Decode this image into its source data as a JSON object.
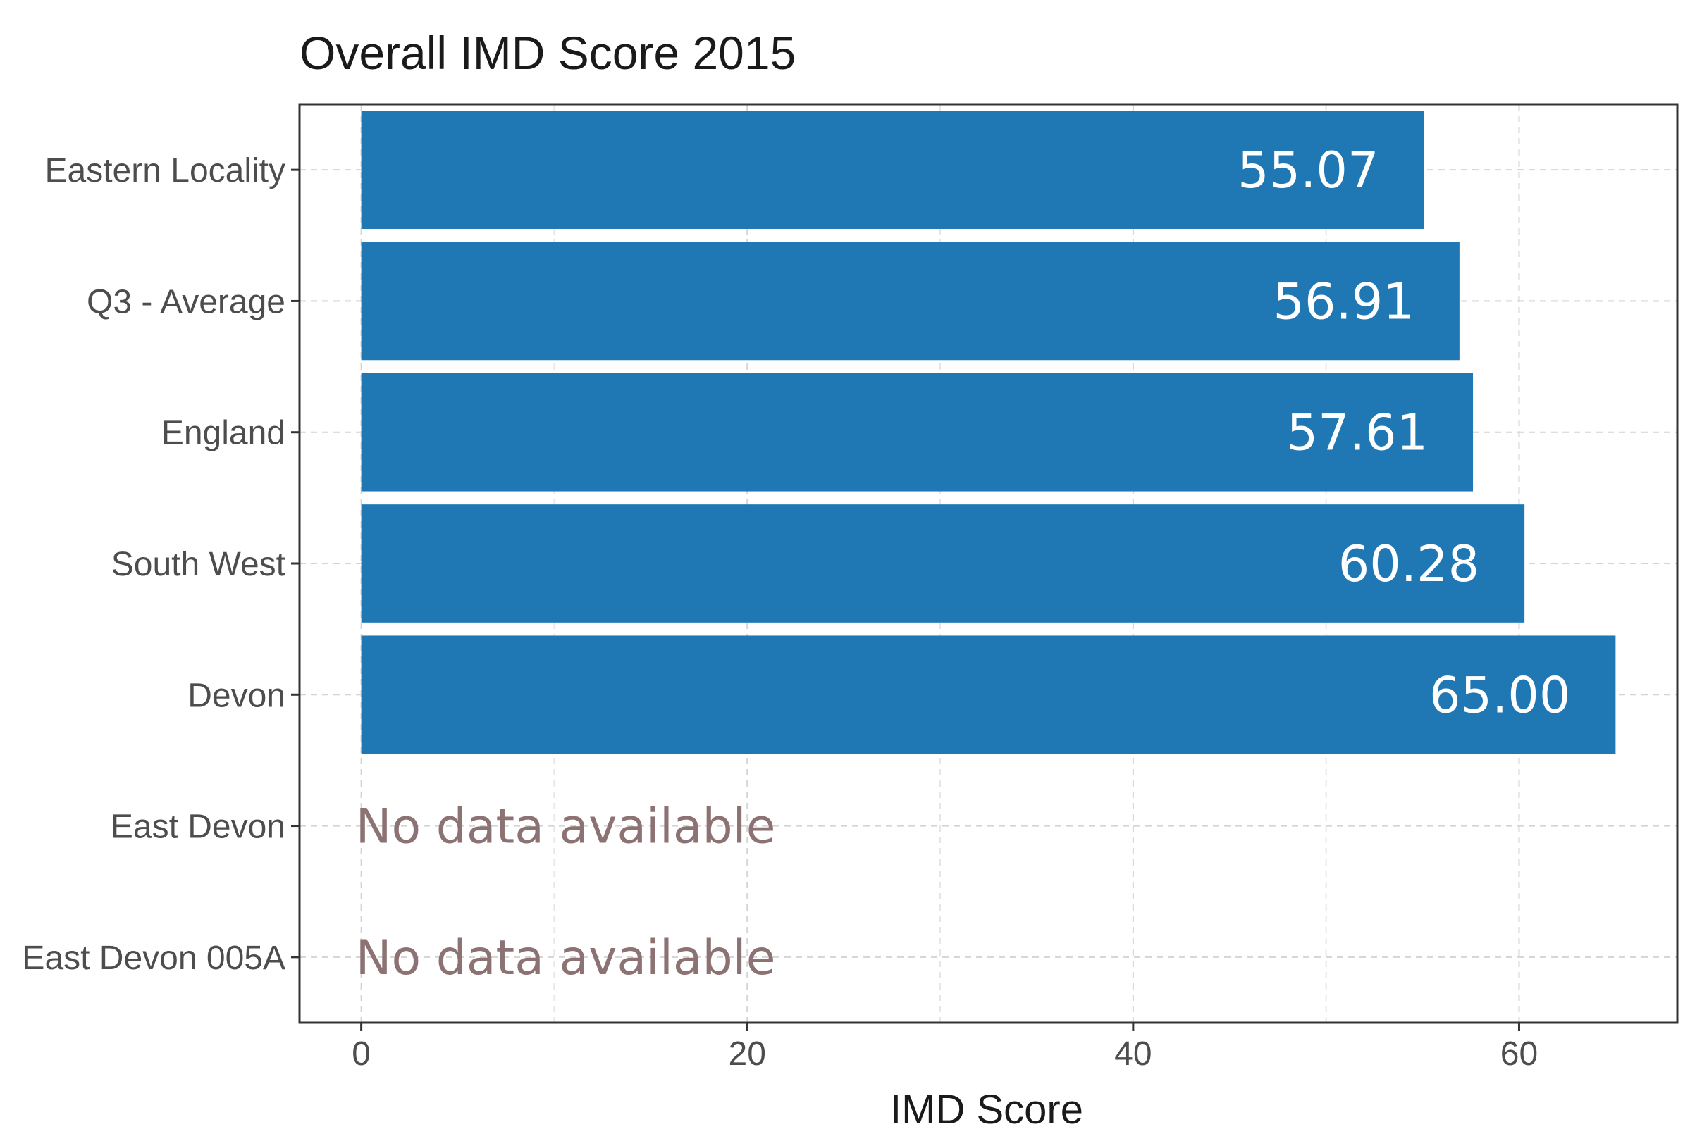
{
  "chart_data": {
    "type": "bar",
    "orientation": "horizontal",
    "title": "Overall IMD Score 2015",
    "xlabel": "IMD Score",
    "ylabel": "",
    "xlim": [
      -3.2,
      68.2
    ],
    "xticks": [
      0,
      20,
      40,
      60
    ],
    "xtick_labels": [
      "0",
      "20",
      "40",
      "60"
    ],
    "grid": true,
    "bar_color": "#1f77b4",
    "categories": [
      "Eastern Locality",
      "Q3 - Average",
      "England",
      "South West",
      "Devon",
      "East Devon",
      "East Devon 005A"
    ],
    "values": [
      55.07,
      56.91,
      57.61,
      60.28,
      65.0,
      null,
      null
    ],
    "value_labels": [
      "55.07",
      "56.91",
      "57.61",
      "60.28",
      "65.00",
      null,
      null
    ],
    "missing_label": "No data available"
  }
}
